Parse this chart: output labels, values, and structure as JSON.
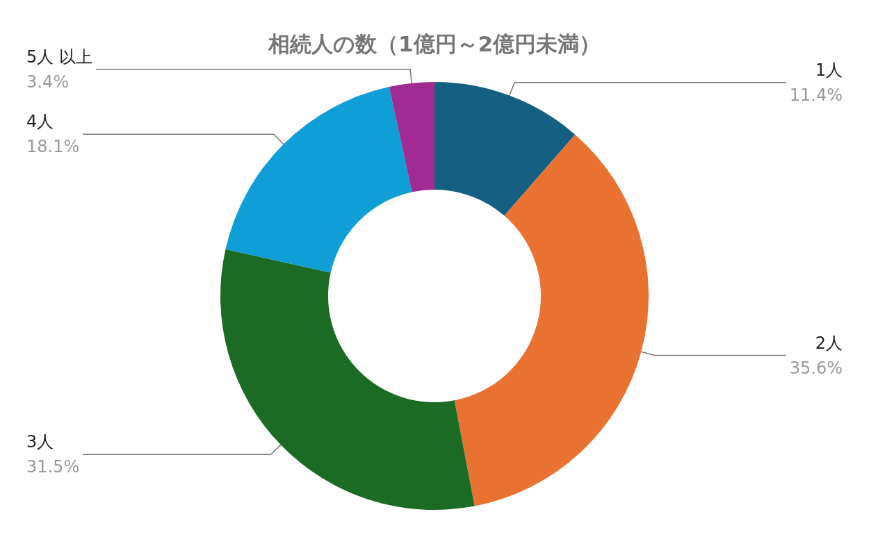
{
  "chart_data": {
    "type": "donut",
    "title": "相続人の数（1億円～2億円未満）",
    "categories": [
      "1人",
      "2人",
      "3人",
      "4人",
      "5人 以上"
    ],
    "values": [
      11.4,
      35.6,
      31.5,
      18.1,
      3.4
    ],
    "value_labels": [
      "11.4%",
      "35.6%",
      "31.5%",
      "18.1%",
      "3.4%"
    ],
    "colors": [
      "#156082",
      "#e97132",
      "#1b6b24",
      "#0f9ed5",
      "#a02b93"
    ]
  }
}
